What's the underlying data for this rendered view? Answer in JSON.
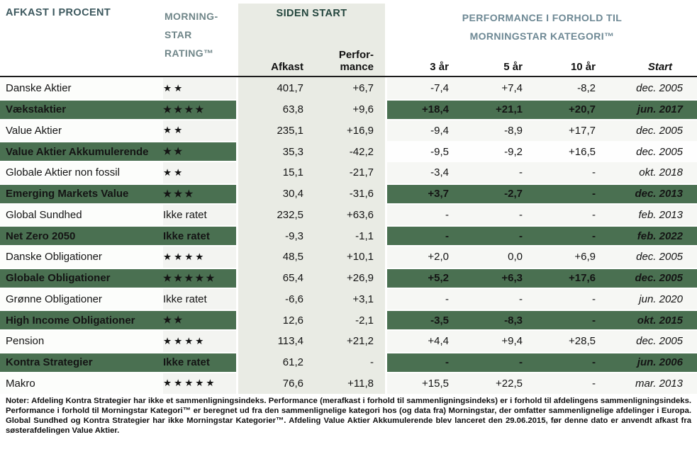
{
  "header": {
    "left_title": "AFKAST I PROCENT",
    "rating_title": "MORNING-\nSTAR\nRATING™",
    "siden_start_title": "SIDEN START",
    "right_title": "PERFORMANCE I FORHOLD TIL\nMORNINGSTAR KATEGORI™",
    "col_afkast": "Afkast",
    "col_performance": "Perfor-\nmance",
    "col_3yr": "3 år",
    "col_5yr": "5 år",
    "col_10yr": "10 år",
    "col_start": "Start"
  },
  "rating_labels": {
    "not_rated": "Ikke ratet",
    "star_symbol": "★"
  },
  "rows": [
    {
      "name": "Danske Aktier",
      "stars": 2,
      "rating_text": "",
      "afkast": "401,7",
      "performance": "+6,7",
      "y3": "-7,4",
      "y5": "+7,4",
      "y10": "-8,2",
      "start": "dec. 2005",
      "green": false,
      "right_green": false
    },
    {
      "name": "Vækstaktier",
      "stars": 4,
      "rating_text": "",
      "afkast": "63,8",
      "performance": "+9,6",
      "y3": "+18,4",
      "y5": "+21,1",
      "y10": "+20,7",
      "start": "jun. 2017",
      "green": true,
      "right_green": true
    },
    {
      "name": "Value Aktier",
      "stars": 2,
      "rating_text": "",
      "afkast": "235,1",
      "performance": "+16,9",
      "y3": "-9,4",
      "y5": "-8,9",
      "y10": "+17,7",
      "start": "dec. 2005",
      "green": false,
      "right_green": false
    },
    {
      "name": "Value Aktier Akkumulerende",
      "stars": 2,
      "rating_text": "",
      "afkast": "35,3",
      "performance": "-42,2",
      "y3": "-9,5",
      "y5": "-9,2",
      "y10": "+16,5",
      "start": "dec. 2005",
      "green": true,
      "right_green": false
    },
    {
      "name": "Globale Aktier non fossil",
      "stars": 2,
      "rating_text": "",
      "afkast": "15,1",
      "performance": "-21,7",
      "y3": "-3,4",
      "y5": "-",
      "y10": "-",
      "start": "okt. 2018",
      "green": false,
      "right_green": false
    },
    {
      "name": "Emerging Markets Value",
      "stars": 3,
      "rating_text": "",
      "afkast": "30,4",
      "performance": "-31,6",
      "y3": "+3,7",
      "y5": "-2,7",
      "y10": "-",
      "start": "dec. 2013",
      "green": true,
      "right_green": true
    },
    {
      "name": "Global Sundhed",
      "stars": 0,
      "rating_text": "Ikke ratet",
      "afkast": "232,5",
      "performance": "+63,6",
      "y3": "-",
      "y5": "-",
      "y10": "-",
      "start": "feb. 2013",
      "green": false,
      "right_green": false
    },
    {
      "name": "Net Zero 2050",
      "stars": 0,
      "rating_text": "Ikke ratet",
      "afkast": "-9,3",
      "performance": "-1,1",
      "y3": "-",
      "y5": "-",
      "y10": "-",
      "start": "feb. 2022",
      "green": true,
      "right_green": true
    },
    {
      "name": "Danske Obligationer",
      "stars": 4,
      "rating_text": "",
      "afkast": "48,5",
      "performance": "+10,1",
      "y3": "+2,0",
      "y5": "0,0",
      "y10": "+6,9",
      "start": "dec. 2005",
      "green": false,
      "right_green": false
    },
    {
      "name": "Globale Obligationer",
      "stars": 5,
      "rating_text": "",
      "afkast": "65,4",
      "performance": "+26,9",
      "y3": "+5,2",
      "y5": "+6,3",
      "y10": "+17,6",
      "start": "dec. 2005",
      "green": true,
      "right_green": true
    },
    {
      "name": "Grønne Obligationer",
      "stars": 0,
      "rating_text": "Ikke ratet",
      "afkast": "-6,6",
      "performance": "+3,1",
      "y3": "-",
      "y5": "-",
      "y10": "-",
      "start": "jun. 2020",
      "green": false,
      "right_green": false
    },
    {
      "name": "High Income Obligationer",
      "stars": 2,
      "rating_text": "",
      "afkast": "12,6",
      "performance": "-2,1",
      "y3": "-3,5",
      "y5": "-8,3",
      "y10": "-",
      "start": "okt. 2015",
      "green": true,
      "right_green": true
    },
    {
      "name": "Pension",
      "stars": 4,
      "rating_text": "",
      "afkast": "113,4",
      "performance": "+21,2",
      "y3": "+4,4",
      "y5": "+9,4",
      "y10": "+28,5",
      "start": "dec. 2005",
      "green": false,
      "right_green": false
    },
    {
      "name": "Kontra Strategier",
      "stars": 0,
      "rating_text": "Ikke ratet",
      "afkast": "61,2",
      "performance": "-",
      "y3": "-",
      "y5": "-",
      "y10": "-",
      "start": "jun. 2006",
      "green": true,
      "right_green": true
    },
    {
      "name": "Makro",
      "stars": 5,
      "rating_text": "",
      "afkast": "76,6",
      "performance": "+11,8",
      "y3": "+15,5",
      "y5": "+22,5",
      "y10": "-",
      "start": "mar. 2013",
      "green": false,
      "right_green": false
    }
  ],
  "notes": "Noter: Afdeling Kontra Strategier har ikke et sammenligningsindeks. Performance (merafkast i forhold til sammenligningsindeks) er i forhold til afdelingens sammenligningsindeks. Performance i forhold til Morningstar Kategori™ er beregnet ud fra den sammenlignelige kategori hos (og data fra) Morningstar, der omfatter sammenlignelige afdelinger i Europa. Global Sundhed og Kontra Strategier har ikke Morningstar Kategorier™. Afdeling Value Aktier Akkumulerende blev lanceret den 29.06.2015, før denne dato er anvendt afkast fra søsterafdelingen Value Aktier.",
  "colors": {
    "row_green": "#4a7051",
    "band_gray": "#e9ebe4",
    "header_left_title": "#3c585e",
    "header_rating_title": "#708689",
    "header_right_title": "#6d8894",
    "siden_start_title": "#24463e",
    "text": "#141414"
  }
}
